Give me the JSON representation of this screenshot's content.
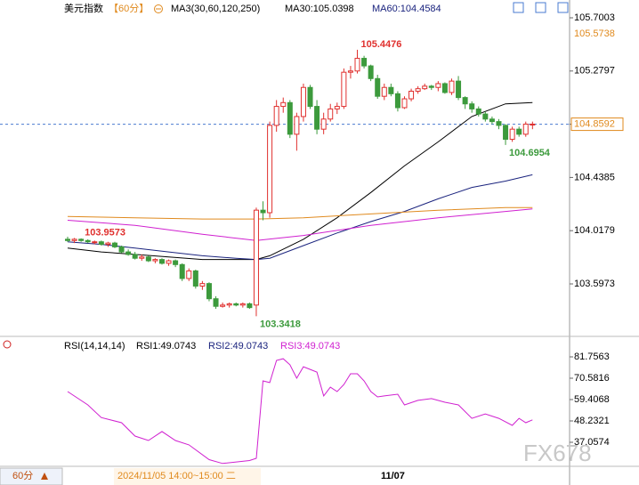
{
  "chart_data": {
    "type": "candlestick",
    "title": "美元指数",
    "period": "【60分】",
    "ma_label": "MA3(30,60,120,250)",
    "ma_values": [
      "MA30:105.0398",
      "MA60:104.4584"
    ],
    "ylim": [
      103.295,
      105.7706
    ],
    "yticks": [
      105.7003,
      105.2797,
      104.8591,
      104.4385,
      104.0179,
      103.5973
    ],
    "side_labels": [
      {
        "value": 105.5738,
        "label": "105.5738"
      },
      {
        "value": 104.8592,
        "label": "104.8592"
      }
    ],
    "up_color": "#e0302e",
    "down_color": "#3c9a3c",
    "candles": [
      [
        103.95,
        103.97,
        103.93,
        103.94
      ],
      [
        103.94,
        103.96,
        103.92,
        103.95
      ],
      [
        103.95,
        103.9573,
        103.93,
        103.94
      ],
      [
        103.94,
        103.95,
        103.92,
        103.93
      ],
      [
        103.93,
        103.94,
        103.91,
        103.93
      ],
      [
        103.93,
        103.94,
        103.9,
        103.91
      ],
      [
        103.91,
        103.93,
        103.89,
        103.92
      ],
      [
        103.92,
        103.93,
        103.88,
        103.89
      ],
      [
        103.89,
        103.9,
        103.84,
        103.85
      ],
      [
        103.85,
        103.87,
        103.82,
        103.83
      ],
      [
        103.83,
        103.85,
        103.79,
        103.8
      ],
      [
        103.8,
        103.83,
        103.78,
        103.81
      ],
      [
        103.81,
        103.82,
        103.77,
        103.78
      ],
      [
        103.78,
        103.8,
        103.76,
        103.79
      ],
      [
        103.79,
        103.8,
        103.75,
        103.76
      ],
      [
        103.76,
        103.79,
        103.74,
        103.78
      ],
      [
        103.78,
        103.79,
        103.73,
        103.75
      ],
      [
        103.75,
        103.76,
        103.62,
        103.64
      ],
      [
        103.64,
        103.72,
        103.62,
        103.7
      ],
      [
        103.7,
        103.71,
        103.56,
        103.58
      ],
      [
        103.58,
        103.62,
        103.55,
        103.6
      ],
      [
        103.6,
        103.61,
        103.46,
        103.48
      ],
      [
        103.48,
        103.5,
        103.4,
        103.42
      ],
      [
        103.42,
        103.45,
        103.41,
        103.43
      ],
      [
        103.43,
        103.45,
        103.41,
        103.44
      ],
      [
        103.44,
        103.45,
        103.42,
        103.43
      ],
      [
        103.43,
        103.45,
        103.41,
        103.44
      ],
      [
        103.44,
        103.45,
        103.4,
        103.41
      ],
      [
        103.43,
        104.2,
        103.3418,
        104.18
      ],
      [
        104.18,
        104.25,
        104.1,
        104.16
      ],
      [
        104.16,
        104.88,
        104.12,
        104.85
      ],
      [
        104.85,
        105.05,
        104.8,
        105.0
      ],
      [
        105.0,
        105.07,
        104.95,
        105.03
      ],
      [
        105.03,
        105.05,
        104.75,
        104.78
      ],
      [
        104.78,
        104.95,
        104.65,
        104.92
      ],
      [
        104.92,
        105.18,
        104.88,
        105.15
      ],
      [
        105.15,
        105.17,
        104.98,
        105.0
      ],
      [
        105.0,
        105.05,
        104.78,
        104.82
      ],
      [
        104.82,
        104.95,
        104.78,
        104.9
      ],
      [
        104.9,
        105.02,
        104.88,
        104.98
      ],
      [
        104.98,
        105.03,
        104.94,
        105.0
      ],
      [
        105.0,
        105.3,
        104.98,
        105.27
      ],
      [
        105.27,
        105.32,
        105.22,
        105.28
      ],
      [
        105.28,
        105.4476,
        105.26,
        105.38
      ],
      [
        105.38,
        105.4,
        105.3,
        105.32
      ],
      [
        105.32,
        105.33,
        105.2,
        105.22
      ],
      [
        105.22,
        105.25,
        105.06,
        105.08
      ],
      [
        105.08,
        105.18,
        105.05,
        105.15
      ],
      [
        105.15,
        105.18,
        105.08,
        105.1
      ],
      [
        105.1,
        105.12,
        104.96,
        104.99
      ],
      [
        104.99,
        105.08,
        104.98,
        105.06
      ],
      [
        105.06,
        105.14,
        105.04,
        105.12
      ],
      [
        105.12,
        105.16,
        105.1,
        105.14
      ],
      [
        105.14,
        105.18,
        105.13,
        105.16
      ],
      [
        105.16,
        105.17,
        105.13,
        105.15
      ],
      [
        105.15,
        105.2,
        105.12,
        105.18
      ],
      [
        105.18,
        105.19,
        105.1,
        105.11
      ],
      [
        105.11,
        105.22,
        105.09,
        105.2
      ],
      [
        105.2,
        105.24,
        105.05,
        105.07
      ],
      [
        105.07,
        105.08,
        104.98,
        105.02
      ],
      [
        105.02,
        105.04,
        104.95,
        104.98
      ],
      [
        104.98,
        105.0,
        104.92,
        104.94
      ],
      [
        104.94,
        104.96,
        104.88,
        104.9
      ],
      [
        104.9,
        104.92,
        104.86,
        104.88
      ],
      [
        104.88,
        104.9,
        104.82,
        104.85
      ],
      [
        104.85,
        104.86,
        104.6954,
        104.74
      ],
      [
        104.74,
        104.84,
        104.72,
        104.82
      ],
      [
        104.82,
        104.84,
        104.76,
        104.78
      ],
      [
        104.78,
        104.88,
        104.76,
        104.86
      ],
      [
        104.86,
        104.88,
        104.82,
        104.86
      ]
    ],
    "annotations": [
      {
        "label": "103.9573",
        "candle": 2,
        "color": "#e0302e"
      },
      {
        "label": "105.4476",
        "candle": 43,
        "color": "#e0302e"
      },
      {
        "label": "103.3418",
        "candle": 28,
        "color": "#3c9a3c"
      },
      {
        "label": "104.6954",
        "candle": 65,
        "color": "#3c9a3c"
      }
    ],
    "lines": [
      {
        "color": "#000000",
        "x": [
          0,
          5,
          10,
          15,
          20,
          25,
          28,
          30,
          35,
          40,
          45,
          50,
          55,
          60,
          65,
          69
        ],
        "values": [
          103.88,
          103.85,
          103.83,
          103.81,
          103.79,
          103.79,
          103.79,
          103.82,
          103.95,
          104.12,
          104.32,
          104.53,
          104.72,
          104.92,
          105.02,
          105.03
        ]
      },
      {
        "color": "#1a237e",
        "x": [
          0,
          5,
          10,
          15,
          20,
          25,
          28,
          30,
          35,
          40,
          45,
          50,
          55,
          60,
          65,
          69
        ],
        "values": [
          103.93,
          103.91,
          103.88,
          103.85,
          103.82,
          103.8,
          103.79,
          103.8,
          103.9,
          104.0,
          104.09,
          104.17,
          104.27,
          104.36,
          104.41,
          104.46
        ]
      },
      {
        "color": "#e08a1e",
        "x": [
          0,
          10,
          20,
          28,
          35,
          45,
          55,
          65,
          69
        ],
        "values": [
          104.13,
          104.12,
          104.11,
          104.11,
          104.12,
          104.15,
          104.18,
          104.2,
          104.2
        ]
      },
      {
        "color": "#d020d0",
        "x": [
          0,
          10,
          20,
          28,
          35,
          45,
          55,
          65,
          69
        ],
        "values": [
          104.1,
          104.06,
          103.99,
          103.94,
          103.98,
          104.06,
          104.12,
          104.17,
          104.19
        ]
      }
    ],
    "rsi": {
      "labels": [
        "RSI(14,14,14)",
        "RSI1:49.0743",
        "RSI2:49.0743",
        "RSI3:49.0743"
      ],
      "ylim": [
        25.42,
        86.88
      ],
      "yticks": [
        81.7563,
        70.5816,
        59.4068,
        48.2321,
        37.0574
      ],
      "color": "#d020d0",
      "x": [
        0,
        3,
        5,
        8,
        10,
        12,
        14,
        16,
        18,
        21,
        23,
        27,
        28,
        29,
        30,
        31,
        32,
        33,
        34,
        35,
        36,
        37,
        38,
        39,
        40,
        41,
        42,
        43,
        44,
        45,
        46,
        47,
        49,
        50,
        52,
        54,
        56,
        58,
        60,
        62,
        64,
        66,
        67,
        68,
        69
      ],
      "values": [
        63.6,
        56.6,
        50,
        47.3,
        40.3,
        38,
        42.7,
        38,
        35.7,
        28,
        26,
        27.5,
        28.7,
        69.2,
        68.3,
        79.9,
        80.8,
        77.6,
        70.6,
        76.6,
        75.2,
        73.8,
        61.3,
        65.9,
        63.6,
        67.3,
        72.9,
        72.9,
        69.2,
        63.6,
        60.8,
        61.3,
        62.2,
        56.6,
        59,
        59.9,
        58,
        56.6,
        49.6,
        51.9,
        49.6,
        45.9,
        49.6,
        47.3,
        48.8
      ]
    },
    "footer": {
      "period": "60分",
      "cursor": "2024/11/05 14:00~15:00 二",
      "date": "11/07"
    },
    "watermark": "FX678"
  }
}
